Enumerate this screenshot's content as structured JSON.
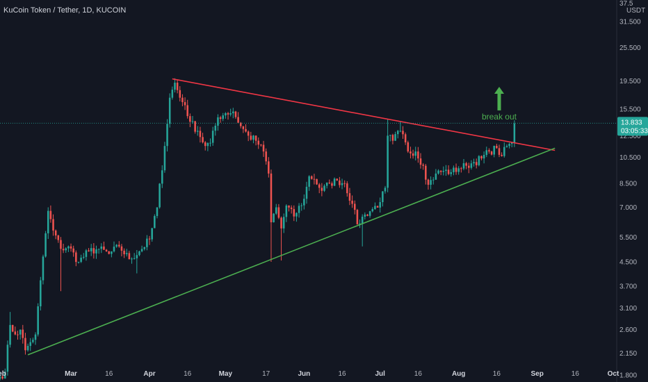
{
  "chart_data": {
    "type": "candlestick",
    "title": "KuCoin Token / Tether, 1D, KUCOIN",
    "currency": "USDT",
    "y_scale": "log",
    "ylim": [
      1.75,
      37.5
    ],
    "y_ticks": [
      "31.500",
      "25.500",
      "19.500",
      "15.500",
      "12.500",
      "10.500",
      "8.500",
      "7.000",
      "5.500",
      "4.500",
      "3.700",
      "3.100",
      "2.600",
      "2.150",
      "1.800"
    ],
    "y_top_partial_label": "37.5",
    "x_range": [
      "2021-02-01",
      "2021-10-01"
    ],
    "x_ticks": [
      {
        "date": "2021-02-01",
        "label": "Feb",
        "bold": true
      },
      {
        "date": "2021-03-01",
        "label": "Mar",
        "bold": true
      },
      {
        "date": "2021-03-16",
        "label": "16",
        "bold": false
      },
      {
        "date": "2021-04-01",
        "label": "Apr",
        "bold": true
      },
      {
        "date": "2021-04-16",
        "label": "16",
        "bold": false
      },
      {
        "date": "2021-05-01",
        "label": "May",
        "bold": true
      },
      {
        "date": "2021-05-17",
        "label": "17",
        "bold": false
      },
      {
        "date": "2021-06-01",
        "label": "Jun",
        "bold": true
      },
      {
        "date": "2021-06-16",
        "label": "16",
        "bold": false
      },
      {
        "date": "2021-07-01",
        "label": "Jul",
        "bold": true
      },
      {
        "date": "2021-07-16",
        "label": "16",
        "bold": false
      },
      {
        "date": "2021-08-01",
        "label": "Aug",
        "bold": true
      },
      {
        "date": "2021-08-16",
        "label": "16",
        "bold": false
      },
      {
        "date": "2021-09-01",
        "label": "Sep",
        "bold": true
      },
      {
        "date": "2021-09-16",
        "label": "16",
        "bold": false
      },
      {
        "date": "2021-10-01",
        "label": "Oct",
        "bold": true
      }
    ],
    "price_keypoints": [
      [
        "2021-02-01",
        1.78
      ],
      [
        "2021-02-03",
        1.85
      ],
      [
        "2021-02-05",
        2.7
      ],
      [
        "2021-02-07",
        2.5
      ],
      [
        "2021-02-09",
        2.6
      ],
      [
        "2021-02-11",
        2.2
      ],
      [
        "2021-02-13",
        2.35
      ],
      [
        "2021-02-15",
        2.5
      ],
      [
        "2021-02-18",
        4.7
      ],
      [
        "2021-02-20",
        6.8
      ],
      [
        "2021-02-22",
        5.8
      ],
      [
        "2021-02-25",
        5.0
      ],
      [
        "2021-02-28",
        5.1
      ],
      [
        "2021-03-04",
        4.5
      ],
      [
        "2021-03-08",
        4.9
      ],
      [
        "2021-03-12",
        5.0
      ],
      [
        "2021-03-16",
        4.8
      ],
      [
        "2021-03-20",
        5.1
      ],
      [
        "2021-03-24",
        4.6
      ],
      [
        "2021-03-28",
        4.9
      ],
      [
        "2021-04-01",
        5.4
      ],
      [
        "2021-04-04",
        7.0
      ],
      [
        "2021-04-07",
        11.5
      ],
      [
        "2021-04-09",
        17.0
      ],
      [
        "2021-04-11",
        19.2
      ],
      [
        "2021-04-13",
        17.0
      ],
      [
        "2021-04-15",
        16.0
      ],
      [
        "2021-04-17",
        14.0
      ],
      [
        "2021-04-20",
        13.0
      ],
      [
        "2021-04-23",
        11.5
      ],
      [
        "2021-04-25",
        11.8
      ],
      [
        "2021-04-28",
        14.5
      ],
      [
        "2021-05-01",
        15.0
      ],
      [
        "2021-05-04",
        15.2
      ],
      [
        "2021-05-07",
        13.5
      ],
      [
        "2021-05-10",
        12.5
      ],
      [
        "2021-05-13",
        12.0
      ],
      [
        "2021-05-16",
        11.0
      ],
      [
        "2021-05-18",
        9.2
      ],
      [
        "2021-05-19",
        6.2
      ],
      [
        "2021-05-21",
        7.0
      ],
      [
        "2021-05-23",
        5.9
      ],
      [
        "2021-05-25",
        7.1
      ],
      [
        "2021-05-28",
        6.5
      ],
      [
        "2021-06-01",
        7.5
      ],
      [
        "2021-06-03",
        9.0
      ],
      [
        "2021-06-05",
        8.8
      ],
      [
        "2021-06-08",
        8.0
      ],
      [
        "2021-06-11",
        8.5
      ],
      [
        "2021-06-14",
        8.7
      ],
      [
        "2021-06-17",
        8.5
      ],
      [
        "2021-06-20",
        7.2
      ],
      [
        "2021-06-22",
        6.1
      ],
      [
        "2021-06-25",
        6.6
      ],
      [
        "2021-06-28",
        6.9
      ],
      [
        "2021-07-01",
        7.3
      ],
      [
        "2021-07-03",
        8.2
      ],
      [
        "2021-07-04",
        12.5
      ],
      [
        "2021-07-06",
        12.0
      ],
      [
        "2021-07-09",
        13.0
      ],
      [
        "2021-07-12",
        11.0
      ],
      [
        "2021-07-15",
        11.0
      ],
      [
        "2021-07-18",
        9.8
      ],
      [
        "2021-07-20",
        8.4
      ],
      [
        "2021-07-23",
        9.2
      ],
      [
        "2021-07-26",
        9.4
      ],
      [
        "2021-07-29",
        9.3
      ],
      [
        "2021-08-01",
        9.6
      ],
      [
        "2021-08-04",
        9.8
      ],
      [
        "2021-08-07",
        10.1
      ],
      [
        "2021-08-10",
        10.4
      ],
      [
        "2021-08-13",
        11.0
      ],
      [
        "2021-08-16",
        11.3
      ],
      [
        "2021-08-18",
        10.6
      ],
      [
        "2021-08-20",
        11.5
      ],
      [
        "2021-08-22",
        11.8
      ],
      [
        "2021-08-23",
        13.8
      ]
    ],
    "overrides": [
      {
        "date": "2021-02-05",
        "high": 3.0
      },
      {
        "date": "2021-02-20",
        "high": 7.0
      },
      {
        "date": "2021-02-25",
        "low": 3.55
      },
      {
        "date": "2021-03-27",
        "low": 4.1
      },
      {
        "date": "2021-04-11",
        "high": 19.9
      },
      {
        "date": "2021-05-19",
        "low": 4.5
      },
      {
        "date": "2021-05-23",
        "low": 4.55
      },
      {
        "date": "2021-06-24",
        "low": 5.1
      },
      {
        "date": "2021-07-04",
        "high": 14.3
      },
      {
        "date": "2021-07-09",
        "high": 14.0
      }
    ],
    "trendlines": [
      {
        "name": "descending resistance",
        "color": "#f23645",
        "from": [
          "2021-04-10",
          19.8
        ],
        "to": [
          "2021-09-08",
          11.1
        ]
      },
      {
        "name": "ascending support",
        "color": "#4caf50",
        "from": [
          "2021-02-12",
          2.12
        ],
        "to": [
          "2021-09-08",
          11.3
        ]
      }
    ],
    "last_price": {
      "value": "13.833",
      "countdown": "03:05:33"
    },
    "annotations": [
      {
        "text": "break out",
        "date": "2021-08-17",
        "price": 14.5,
        "color": "#4caf50"
      }
    ],
    "colors": {
      "up": "#26a69a",
      "down": "#ef5350",
      "background": "#131722",
      "axis_text": "#b2b5be",
      "grid": "#1f2432"
    },
    "grid": false
  }
}
